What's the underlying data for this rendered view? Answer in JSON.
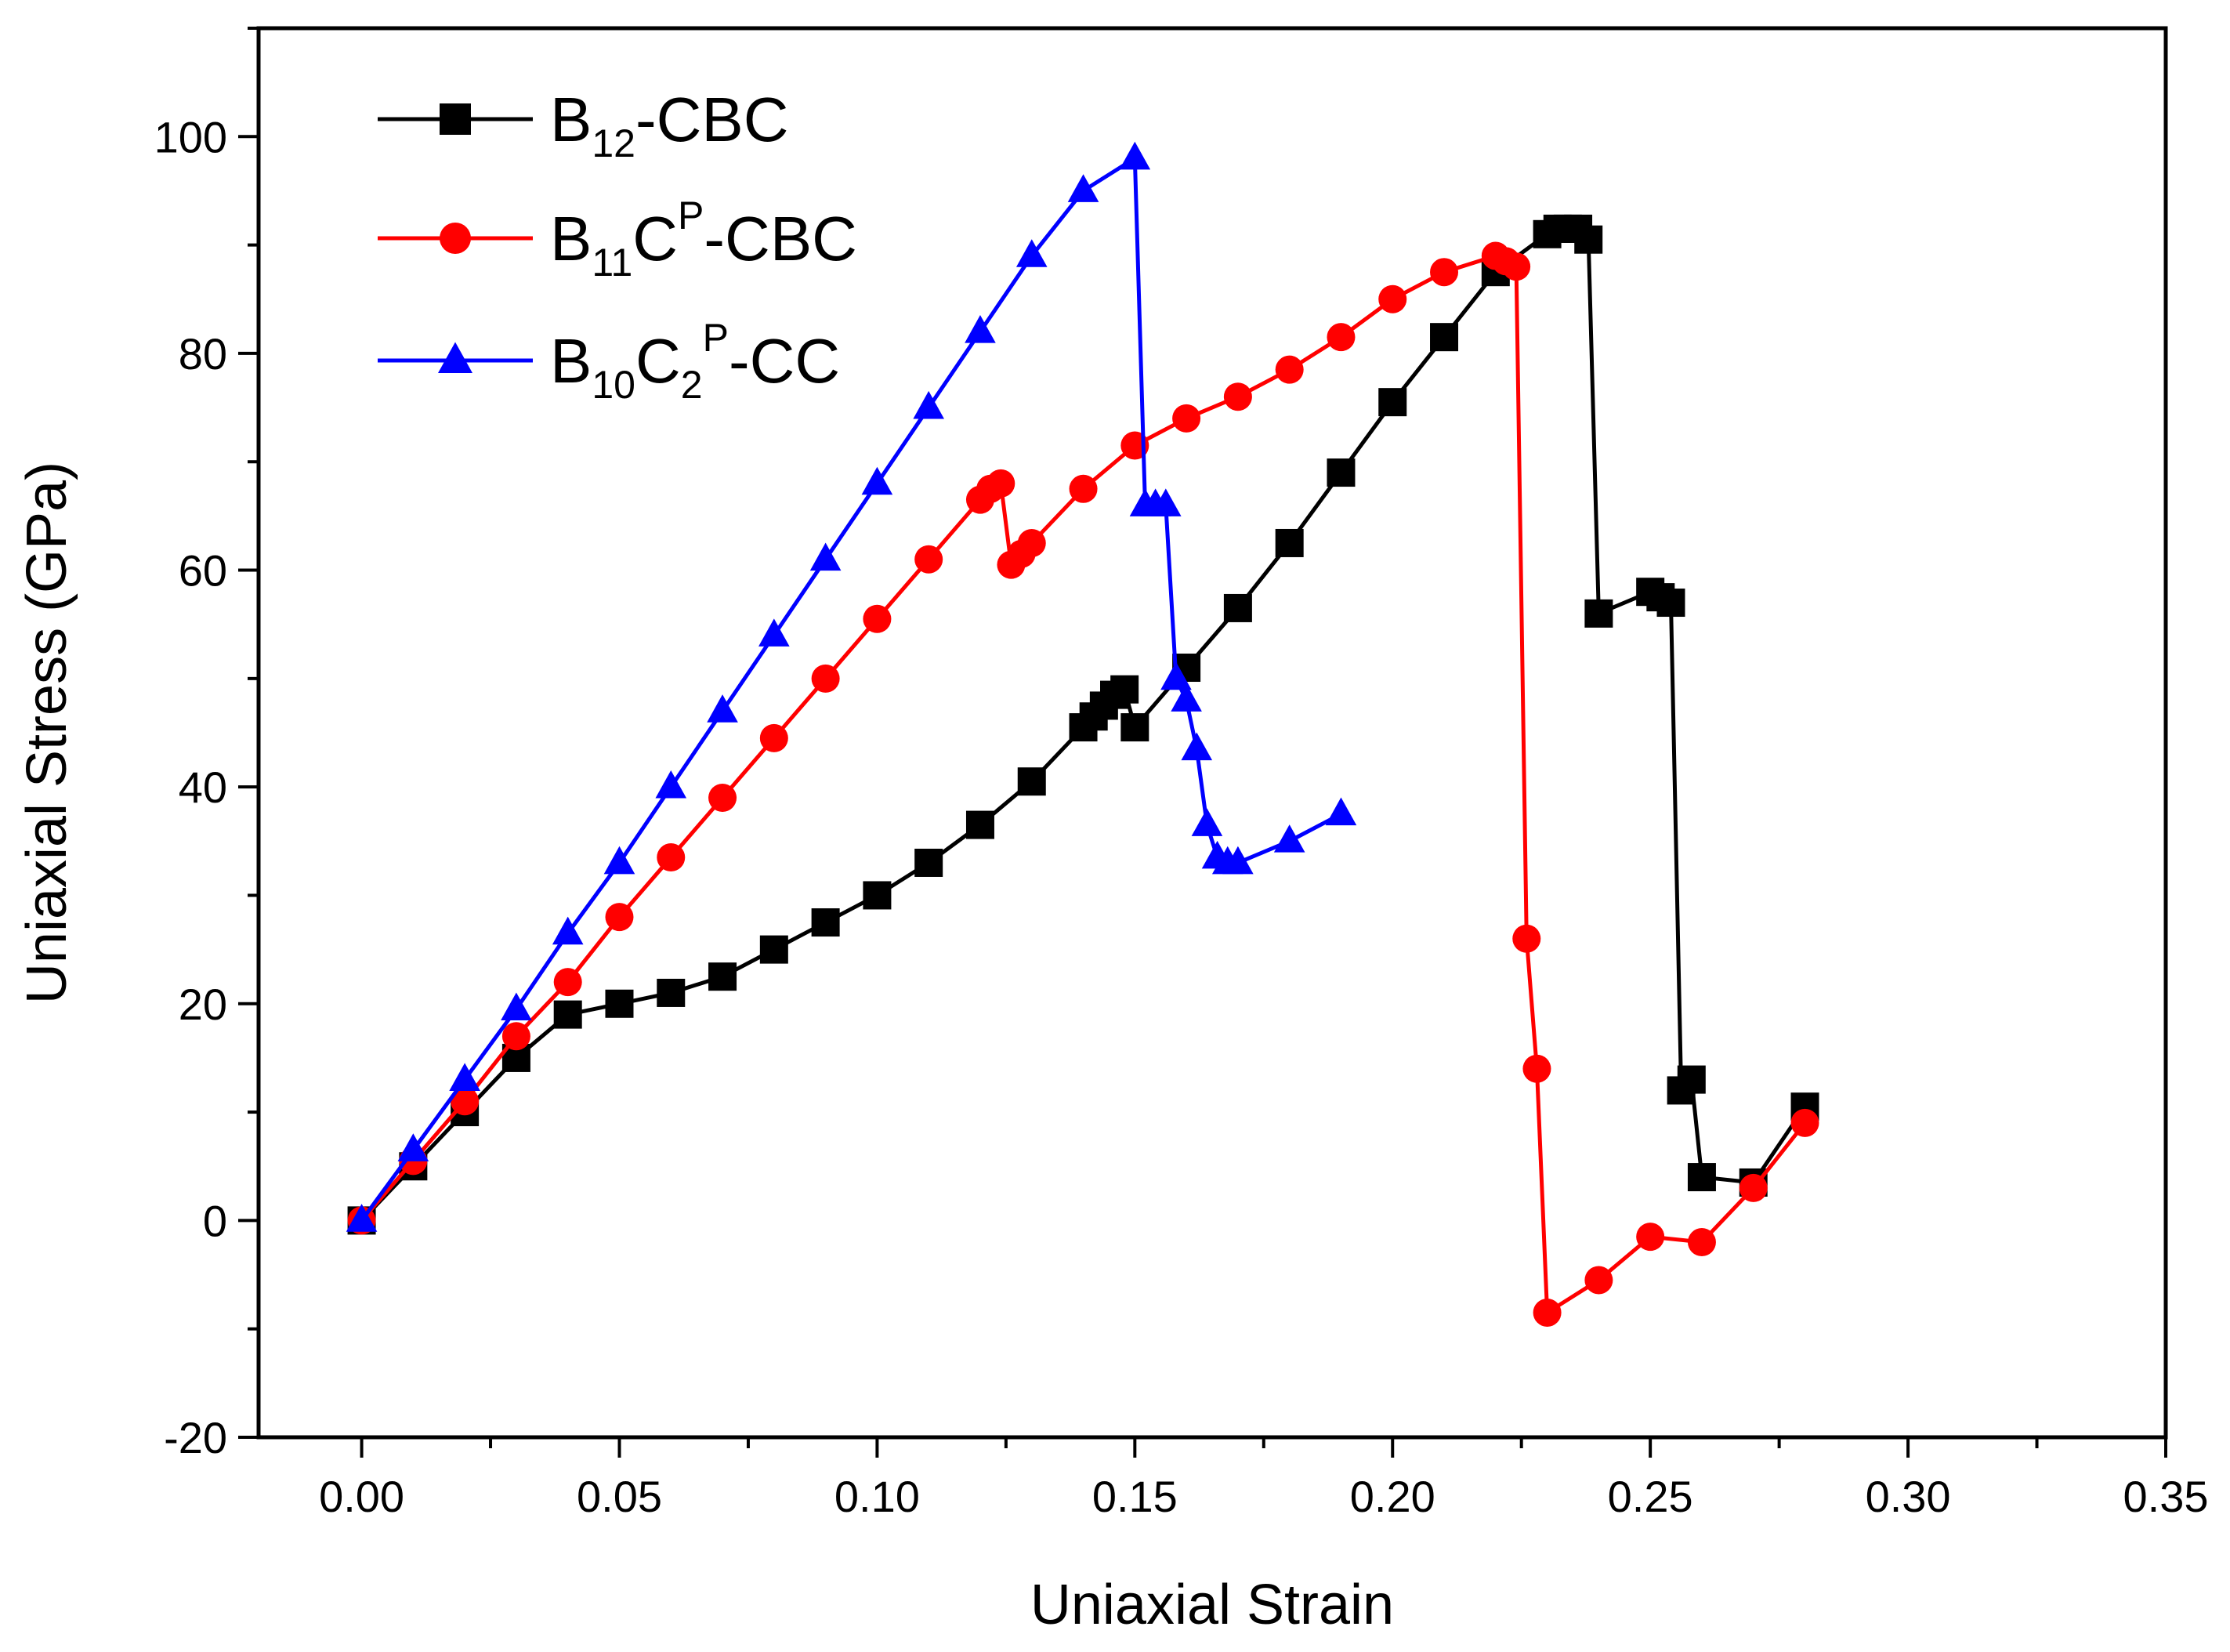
{
  "chart_data": {
    "type": "line",
    "title": "",
    "xlabel": "Uniaxial Strain",
    "ylabel": "Uniaxial Stress (GPa)",
    "xlim": [
      -0.02,
      0.35
    ],
    "ylim": [
      -20,
      110
    ],
    "x_ticks": [
      0.0,
      0.05,
      0.1,
      0.15,
      0.2,
      0.25,
      0.3,
      0.35
    ],
    "x_tick_labels": [
      "0.00",
      "0.05",
      "0.10",
      "0.15",
      "0.20",
      "0.25",
      "0.30",
      "0.35"
    ],
    "y_ticks": [
      -20,
      0,
      20,
      40,
      60,
      80,
      100
    ],
    "y_tick_labels": [
      "-20",
      "0",
      "20",
      "40",
      "60",
      "80",
      "100"
    ],
    "grid": false,
    "legend_position": "top-left",
    "series": [
      {
        "name": "B12-CBC",
        "legend": {
          "base": "B",
          "sub1": "12",
          "rest": "-CBC"
        },
        "color": "#000000",
        "marker": "square",
        "x": [
          0.0,
          0.01,
          0.02,
          0.03,
          0.04,
          0.05,
          0.06,
          0.07,
          0.08,
          0.09,
          0.1,
          0.11,
          0.12,
          0.13,
          0.14,
          0.142,
          0.144,
          0.146,
          0.148,
          0.15,
          0.16,
          0.17,
          0.18,
          0.19,
          0.2,
          0.21,
          0.22,
          0.23,
          0.232,
          0.234,
          0.236,
          0.238,
          0.24,
          0.25,
          0.252,
          0.254,
          0.256,
          0.258,
          0.26,
          0.27,
          0.28
        ],
        "y": [
          0,
          5,
          10,
          15,
          19,
          20,
          21,
          22.5,
          25,
          27.5,
          30,
          33,
          36.5,
          40.5,
          45.5,
          46.5,
          47.5,
          48.5,
          49,
          45.5,
          51,
          56.5,
          62.5,
          69,
          75.5,
          81.5,
          87.5,
          91,
          91.5,
          91.5,
          91.5,
          90.5,
          56,
          58,
          57.5,
          57,
          12,
          13,
          4,
          3.5,
          10.5
        ]
      },
      {
        "name": "B11CP-CBC",
        "legend": {
          "base": "B",
          "sub1": "11",
          "mid": "C",
          "sup1": "P",
          "rest": "-CBC"
        },
        "color": "#ff0000",
        "marker": "circle",
        "x": [
          0.0,
          0.01,
          0.02,
          0.03,
          0.04,
          0.05,
          0.06,
          0.07,
          0.08,
          0.09,
          0.1,
          0.11,
          0.12,
          0.122,
          0.124,
          0.126,
          0.128,
          0.13,
          0.14,
          0.15,
          0.16,
          0.17,
          0.18,
          0.19,
          0.2,
          0.21,
          0.22,
          0.222,
          0.224,
          0.226,
          0.228,
          0.23,
          0.24,
          0.25,
          0.26,
          0.27,
          0.28
        ],
        "y": [
          0,
          5.5,
          11,
          17,
          22,
          28,
          33.5,
          39,
          44.5,
          50,
          55.5,
          61,
          66.5,
          67.5,
          68,
          60.5,
          61.5,
          62.5,
          67.5,
          71.5,
          74,
          76,
          78.5,
          81.5,
          85,
          87.5,
          89,
          88.5,
          88,
          26,
          14,
          -8.5,
          -5.5,
          -1.5,
          -2,
          3,
          9
        ]
      },
      {
        "name": "B10C2P-CC",
        "legend": {
          "base": "B",
          "sub1": "10",
          "mid": "C",
          "sub2": "2",
          "sup1": "P",
          "rest": "-CC"
        },
        "color": "#0000ff",
        "marker": "triangle",
        "x": [
          0.0,
          0.01,
          0.02,
          0.03,
          0.04,
          0.05,
          0.06,
          0.07,
          0.08,
          0.09,
          0.1,
          0.11,
          0.12,
          0.13,
          0.14,
          0.15,
          0.152,
          0.154,
          0.156,
          0.158,
          0.16,
          0.162,
          0.164,
          0.166,
          0.168,
          0.17,
          0.18,
          0.19
        ],
        "y": [
          0,
          6.5,
          13,
          19.5,
          26.5,
          33,
          40,
          47,
          54,
          61,
          68,
          75,
          82,
          89,
          95,
          98,
          66,
          66,
          66,
          50,
          48,
          43.5,
          36.5,
          33.5,
          33,
          33,
          35,
          37.5
        ]
      }
    ]
  }
}
